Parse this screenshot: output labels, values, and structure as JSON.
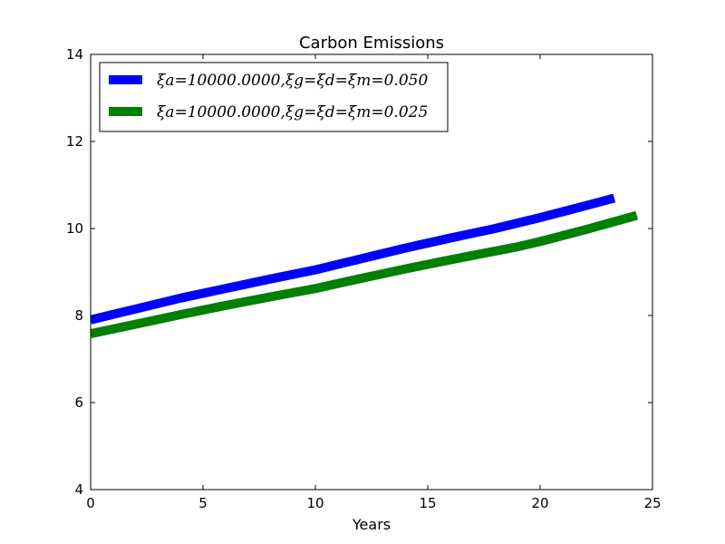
{
  "chart_data": {
    "type": "line",
    "title": "Carbon Emissions",
    "xlabel": "Years",
    "ylabel": "",
    "xlim": [
      0,
      25
    ],
    "ylim": [
      4,
      14
    ],
    "xticks": [
      0,
      5,
      10,
      15,
      20,
      25
    ],
    "yticks": [
      4,
      6,
      8,
      10,
      12,
      14
    ],
    "grid": false,
    "legend_position": "top-left",
    "series": [
      {
        "name": "ξa=10000.0000,ξg=ξd=ξm=0.050",
        "color": "#0000ff",
        "x": [
          0,
          2,
          4,
          6,
          8,
          10,
          12,
          14,
          16,
          18,
          20,
          22,
          23.3
        ],
        "y": [
          7.9,
          8.15,
          8.4,
          8.62,
          8.84,
          9.05,
          9.3,
          9.55,
          9.78,
          10.0,
          10.25,
          10.52,
          10.7
        ]
      },
      {
        "name": "ξa=10000.0000,ξg=ξd=ξm=0.025",
        "color": "#008000",
        "x": [
          0,
          2,
          4,
          6,
          8,
          10,
          12,
          14,
          16,
          18,
          19,
          20,
          22,
          24.3
        ],
        "y": [
          7.58,
          7.8,
          8.02,
          8.23,
          8.43,
          8.62,
          8.85,
          9.07,
          9.28,
          9.48,
          9.58,
          9.7,
          9.97,
          10.3
        ]
      }
    ]
  }
}
